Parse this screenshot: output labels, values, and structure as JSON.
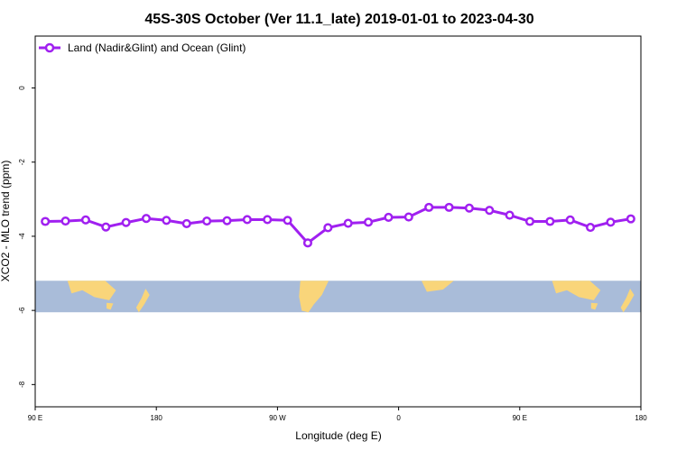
{
  "chart_data": {
    "type": "line",
    "title": "45S-30S October (Ver 11.1_late)   2019-01-01 to 2023-04-30",
    "xlabel": "Longitude (deg E)",
    "ylabel": "XCO2 - MLO trend (ppm)",
    "x_tick_values": [
      90,
      180,
      270,
      360,
      450,
      540
    ],
    "x_tick_labels": [
      "90 E",
      "180",
      "90 W",
      "0",
      "90 E",
      "180"
    ],
    "y_tick_values": [
      0,
      -2,
      -4,
      -6,
      -8
    ],
    "y_tick_labels": [
      "0",
      "-2",
      "-4",
      "-6",
      "-8"
    ],
    "xlim": [
      90,
      540
    ],
    "ylim": [
      -8.6,
      1.4
    ],
    "grid": false,
    "legend_position": "top-left",
    "series": [
      {
        "name": "Land (Nadir&Glint) and Ocean (Glint)",
        "color": "#a020f0",
        "x": [
          97.5,
          112.5,
          127.5,
          142.5,
          157.5,
          172.5,
          187.5,
          202.5,
          217.5,
          232.5,
          247.5,
          262.5,
          277.5,
          292.5,
          307.5,
          322.5,
          337.5,
          352.5,
          367.5,
          382.5,
          397.5,
          412.5,
          427.5,
          442.5,
          457.5,
          472.5,
          487.5,
          502.5,
          517.5,
          532.5
        ],
        "y": [
          -3.6,
          -3.59,
          -3.56,
          -3.75,
          -3.63,
          -3.52,
          -3.57,
          -3.66,
          -3.59,
          -3.58,
          -3.55,
          -3.55,
          -3.57,
          -4.18,
          -3.77,
          -3.65,
          -3.62,
          -3.49,
          -3.48,
          -3.22,
          -3.22,
          -3.24,
          -3.3,
          -3.43,
          -3.6,
          -3.6,
          -3.56,
          -3.76,
          -3.62,
          -3.53
        ]
      }
    ],
    "map_strip_y_range": [
      -5.2,
      -6.05
    ],
    "ocean_color": "#a9bcd9",
    "land_color": "#f9d57a"
  }
}
